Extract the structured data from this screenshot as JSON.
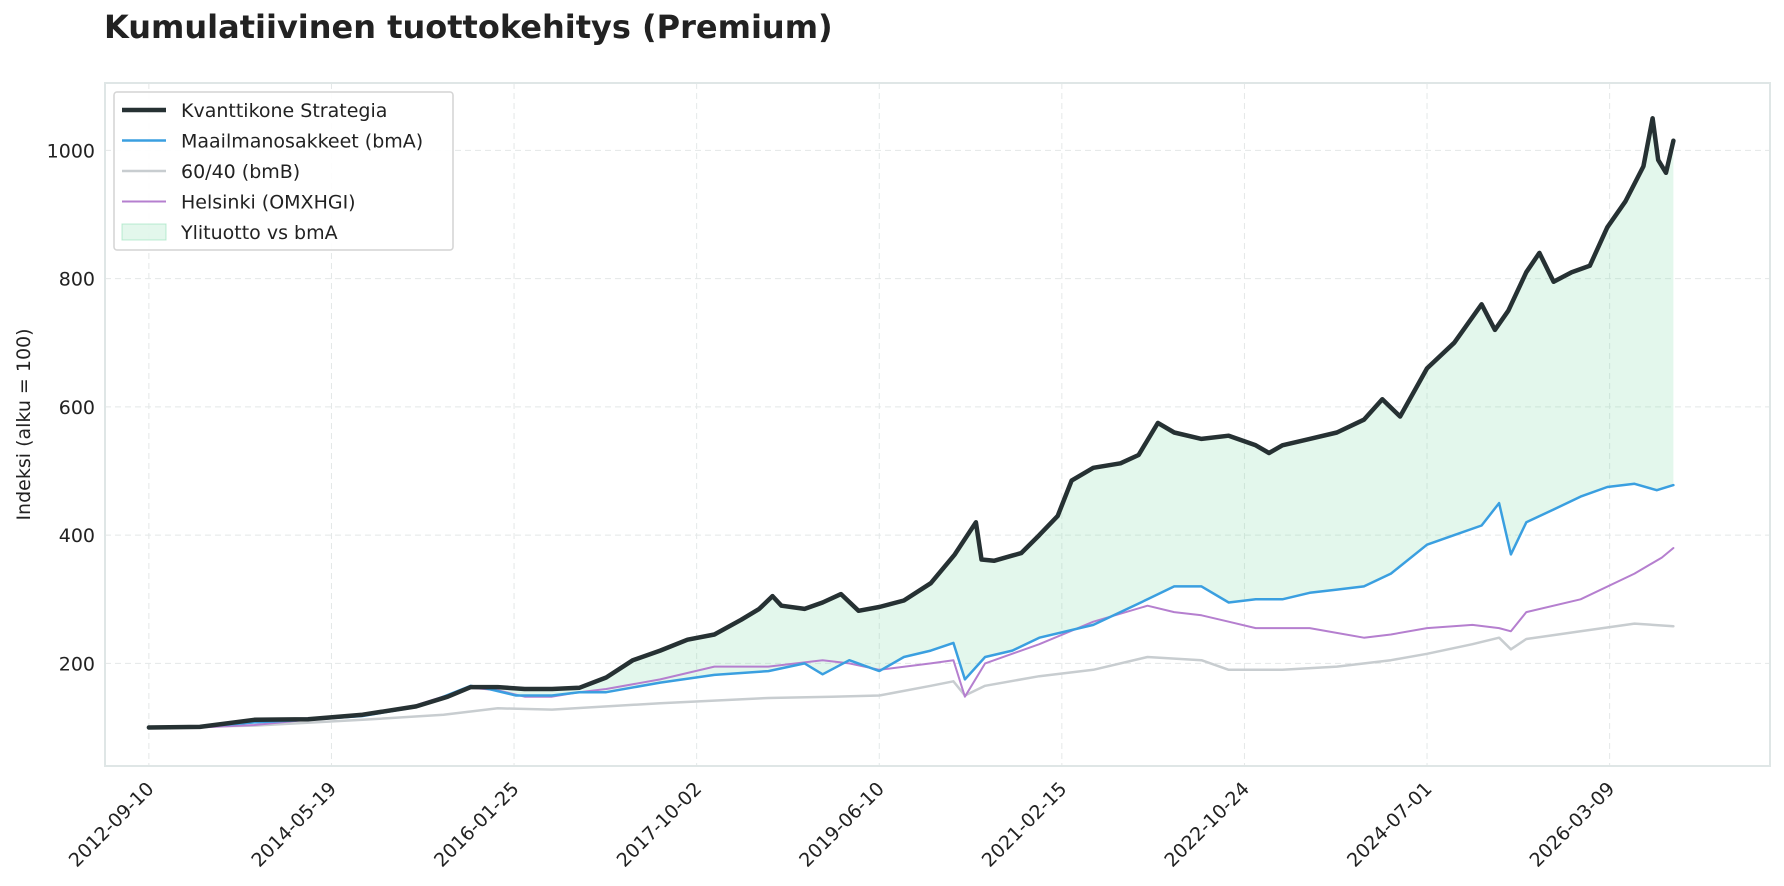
{
  "chart_data": {
    "type": "line",
    "title": "Kumulatiivinen tuottokehitys (Premium)",
    "xlabel": "",
    "ylabel": "Indeksi (alku = 100)",
    "ylim": [
      40,
      1105
    ],
    "xlim": [
      "2012-04-15",
      "2027-09-01"
    ],
    "x_ticks": [
      "2012-09-10",
      "2014-05-19",
      "2016-01-25",
      "2017-10-02",
      "2019-06-10",
      "2021-02-15",
      "2022-10-24",
      "2024-07-01",
      "2026-03-09"
    ],
    "y_ticks": [
      200,
      400,
      600,
      800,
      1000
    ],
    "grid": true,
    "legend_position": "top-left",
    "legend": {
      "fill_label": "Ylituotto vs bmA"
    },
    "fill_between": {
      "name": "Ylituotto vs bmA",
      "upper": "Kvanttikone Strategia",
      "lower": "Maailmanosakkeet (bmA)",
      "color": "#7fdcaa"
    },
    "series": [
      {
        "name": "Kvanttikone Strategia",
        "color": "#263133",
        "points": [
          [
            "2012-09-10",
            100
          ],
          [
            "2013-03-01",
            101
          ],
          [
            "2013-09-01",
            112
          ],
          [
            "2014-03-01",
            113
          ],
          [
            "2014-09-01",
            120
          ],
          [
            "2015-03-01",
            133
          ],
          [
            "2015-06-15",
            148
          ],
          [
            "2015-09-01",
            163
          ],
          [
            "2015-12-01",
            163
          ],
          [
            "2016-03-01",
            160
          ],
          [
            "2016-06-01",
            160
          ],
          [
            "2016-09-01",
            162
          ],
          [
            "2016-12-01",
            178
          ],
          [
            "2017-03-01",
            205
          ],
          [
            "2017-06-01",
            220
          ],
          [
            "2017-09-01",
            237
          ],
          [
            "2017-12-01",
            245
          ],
          [
            "2018-03-01",
            268
          ],
          [
            "2018-05-01",
            285
          ],
          [
            "2018-06-15",
            305
          ],
          [
            "2018-07-15",
            290
          ],
          [
            "2018-10-01",
            285
          ],
          [
            "2018-12-01",
            295
          ],
          [
            "2019-02-01",
            308
          ],
          [
            "2019-04-01",
            282
          ],
          [
            "2019-06-10",
            288
          ],
          [
            "2019-09-01",
            298
          ],
          [
            "2019-12-01",
            325
          ],
          [
            "2020-02-20",
            370
          ],
          [
            "2020-05-01",
            420
          ],
          [
            "2020-05-20",
            362
          ],
          [
            "2020-07-01",
            360
          ],
          [
            "2020-09-01",
            368
          ],
          [
            "2020-10-01",
            372
          ],
          [
            "2020-12-01",
            400
          ],
          [
            "2021-02-01",
            430
          ],
          [
            "2021-03-20",
            485
          ],
          [
            "2021-06-01",
            505
          ],
          [
            "2021-09-01",
            512
          ],
          [
            "2021-11-01",
            525
          ],
          [
            "2022-01-05",
            575
          ],
          [
            "2022-03-01",
            560
          ],
          [
            "2022-06-01",
            550
          ],
          [
            "2022-09-01",
            555
          ],
          [
            "2022-12-01",
            540
          ],
          [
            "2023-01-15",
            528
          ],
          [
            "2023-03-01",
            540
          ],
          [
            "2023-06-01",
            550
          ],
          [
            "2023-09-01",
            560
          ],
          [
            "2023-12-01",
            580
          ],
          [
            "2024-02-01",
            612
          ],
          [
            "2024-04-01",
            585
          ],
          [
            "2024-07-01",
            660
          ],
          [
            "2024-10-01",
            700
          ],
          [
            "2025-01-01",
            760
          ],
          [
            "2025-02-15",
            720
          ],
          [
            "2025-04-01",
            750
          ],
          [
            "2025-06-01",
            810
          ],
          [
            "2025-07-15",
            840
          ],
          [
            "2025-09-01",
            795
          ],
          [
            "2025-11-01",
            810
          ],
          [
            "2026-01-01",
            820
          ],
          [
            "2026-03-01",
            880
          ],
          [
            "2026-05-01",
            920
          ],
          [
            "2026-07-01",
            975
          ],
          [
            "2026-08-01",
            1050
          ],
          [
            "2026-08-20",
            985
          ],
          [
            "2026-09-15",
            965
          ],
          [
            "2026-10-10",
            1015
          ]
        ]
      },
      {
        "name": "Maailmanosakkeet (bmA)",
        "color": "#3a9fe0",
        "points": [
          [
            "2012-09-10",
            100
          ],
          [
            "2013-03-01",
            101
          ],
          [
            "2013-09-01",
            108
          ],
          [
            "2014-03-01",
            112
          ],
          [
            "2014-09-01",
            118
          ],
          [
            "2015-03-01",
            132
          ],
          [
            "2015-06-01",
            148
          ],
          [
            "2015-09-01",
            165
          ],
          [
            "2015-11-01",
            160
          ],
          [
            "2016-02-01",
            150
          ],
          [
            "2016-06-01",
            150
          ],
          [
            "2016-09-01",
            155
          ],
          [
            "2016-12-01",
            155
          ],
          [
            "2017-06-01",
            170
          ],
          [
            "2017-12-01",
            182
          ],
          [
            "2018-06-01",
            188
          ],
          [
            "2018-10-01",
            200
          ],
          [
            "2018-12-01",
            183
          ],
          [
            "2019-03-01",
            205
          ],
          [
            "2019-06-10",
            188
          ],
          [
            "2019-09-01",
            210
          ],
          [
            "2019-12-01",
            220
          ],
          [
            "2020-02-15",
            232
          ],
          [
            "2020-03-25",
            175
          ],
          [
            "2020-06-01",
            210
          ],
          [
            "2020-09-01",
            220
          ],
          [
            "2020-12-01",
            240
          ],
          [
            "2021-06-01",
            260
          ],
          [
            "2021-12-01",
            300
          ],
          [
            "2022-03-01",
            320
          ],
          [
            "2022-06-01",
            320
          ],
          [
            "2022-09-01",
            295
          ],
          [
            "2022-12-01",
            300
          ],
          [
            "2023-03-01",
            300
          ],
          [
            "2023-06-01",
            310
          ],
          [
            "2023-09-01",
            315
          ],
          [
            "2023-12-01",
            320
          ],
          [
            "2024-03-01",
            340
          ],
          [
            "2024-07-01",
            385
          ],
          [
            "2024-10-01",
            400
          ],
          [
            "2025-01-01",
            415
          ],
          [
            "2025-03-01",
            450
          ],
          [
            "2025-04-10",
            370
          ],
          [
            "2025-06-01",
            420
          ],
          [
            "2025-09-01",
            440
          ],
          [
            "2025-12-01",
            460
          ],
          [
            "2026-03-01",
            475
          ],
          [
            "2026-06-01",
            480
          ],
          [
            "2026-08-15",
            470
          ],
          [
            "2026-10-10",
            478
          ]
        ]
      },
      {
        "name": "60/40 (bmB)",
        "color": "#c8cdd0",
        "points": [
          [
            "2012-09-10",
            100
          ],
          [
            "2013-09-01",
            103
          ],
          [
            "2014-09-01",
            112
          ],
          [
            "2015-06-01",
            120
          ],
          [
            "2015-12-01",
            130
          ],
          [
            "2016-06-01",
            128
          ],
          [
            "2017-06-01",
            138
          ],
          [
            "2018-06-01",
            146
          ],
          [
            "2019-01-01",
            148
          ],
          [
            "2019-06-10",
            150
          ],
          [
            "2019-12-01",
            165
          ],
          [
            "2020-02-15",
            172
          ],
          [
            "2020-03-25",
            150
          ],
          [
            "2020-06-01",
            165
          ],
          [
            "2020-12-01",
            180
          ],
          [
            "2021-06-01",
            190
          ],
          [
            "2021-12-01",
            210
          ],
          [
            "2022-06-01",
            205
          ],
          [
            "2022-09-01",
            190
          ],
          [
            "2023-03-01",
            190
          ],
          [
            "2023-09-01",
            195
          ],
          [
            "2024-03-01",
            205
          ],
          [
            "2024-07-01",
            215
          ],
          [
            "2024-12-01",
            230
          ],
          [
            "2025-03-01",
            240
          ],
          [
            "2025-04-10",
            222
          ],
          [
            "2025-06-01",
            238
          ],
          [
            "2025-12-01",
            250
          ],
          [
            "2026-06-01",
            262
          ],
          [
            "2026-10-10",
            258
          ]
        ]
      },
      {
        "name": "Helsinki (OMXHGI)",
        "color": "#b57fcf",
        "points": [
          [
            "2012-09-10",
            100
          ],
          [
            "2013-03-01",
            100
          ],
          [
            "2013-09-01",
            104
          ],
          [
            "2014-03-01",
            112
          ],
          [
            "2014-09-01",
            118
          ],
          [
            "2015-03-01",
            135
          ],
          [
            "2015-09-01",
            162
          ],
          [
            "2015-12-01",
            158
          ],
          [
            "2016-03-01",
            148
          ],
          [
            "2016-06-01",
            148
          ],
          [
            "2016-09-01",
            155
          ],
          [
            "2016-12-01",
            160
          ],
          [
            "2017-06-01",
            175
          ],
          [
            "2017-12-01",
            195
          ],
          [
            "2018-06-01",
            195
          ],
          [
            "2018-12-01",
            205
          ],
          [
            "2019-03-01",
            200
          ],
          [
            "2019-06-10",
            190
          ],
          [
            "2019-12-01",
            200
          ],
          [
            "2020-02-15",
            205
          ],
          [
            "2020-03-25",
            148
          ],
          [
            "2020-06-01",
            200
          ],
          [
            "2020-12-01",
            230
          ],
          [
            "2021-06-01",
            265
          ],
          [
            "2021-12-01",
            290
          ],
          [
            "2022-03-01",
            280
          ],
          [
            "2022-06-01",
            275
          ],
          [
            "2022-09-01",
            265
          ],
          [
            "2022-12-01",
            255
          ],
          [
            "2023-06-01",
            255
          ],
          [
            "2023-12-01",
            240
          ],
          [
            "2024-03-01",
            245
          ],
          [
            "2024-07-01",
            255
          ],
          [
            "2024-12-01",
            260
          ],
          [
            "2025-03-01",
            255
          ],
          [
            "2025-04-10",
            250
          ],
          [
            "2025-06-01",
            280
          ],
          [
            "2025-12-01",
            300
          ],
          [
            "2026-06-01",
            340
          ],
          [
            "2026-09-01",
            365
          ],
          [
            "2026-10-10",
            380
          ]
        ]
      }
    ]
  }
}
